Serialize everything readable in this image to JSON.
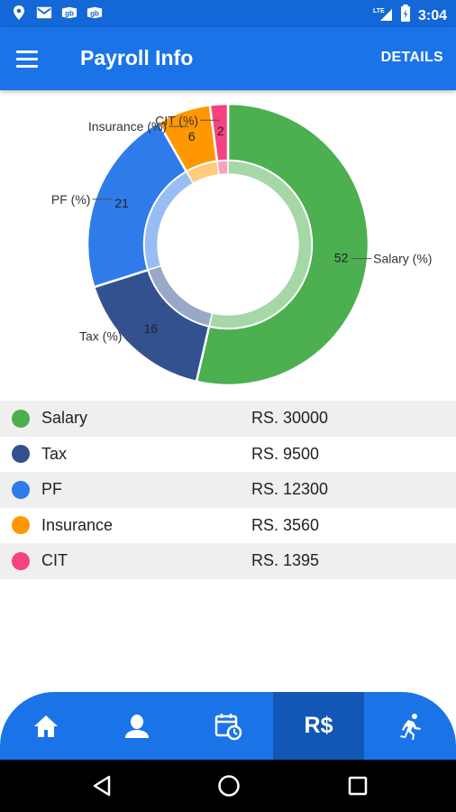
{
  "status_bar": {
    "time": "3:04",
    "network": "LTE",
    "left_icons": [
      "location-icon",
      "mail-icon",
      "app-notification-icon",
      "app-notification-icon"
    ]
  },
  "app_bar": {
    "title": "Payroll Info",
    "action_label": "DETAILS"
  },
  "chart_data": {
    "type": "pie",
    "style": "donut",
    "series": [
      {
        "name": "Salary (%)",
        "value": 52,
        "color": "#4caf50"
      },
      {
        "name": "Tax (%)",
        "value": 16,
        "color": "#34518f"
      },
      {
        "name": "PF (%)",
        "value": 21,
        "color": "#2f7bea"
      },
      {
        "name": "Insurance (%)",
        "value": 6,
        "color": "#ff9800"
      },
      {
        "name": "CIT (%)",
        "value": 2,
        "color": "#f44283"
      }
    ]
  },
  "legend": {
    "items": [
      {
        "label": "Salary",
        "amount": "RS. 30000",
        "color": "#4caf50"
      },
      {
        "label": "Tax",
        "amount": "RS. 9500",
        "color": "#34518f"
      },
      {
        "label": "PF",
        "amount": "RS. 12300",
        "color": "#2f7bea"
      },
      {
        "label": "Insurance",
        "amount": "RS. 3560",
        "color": "#ff9800"
      },
      {
        "label": "CIT",
        "amount": "RS. 1395",
        "color": "#f44283"
      }
    ]
  },
  "bottom_nav": {
    "items": [
      {
        "icon": "home-icon",
        "label": ""
      },
      {
        "icon": "person-icon",
        "label": ""
      },
      {
        "icon": "calendar-clock-icon",
        "label": ""
      },
      {
        "icon": "currency-icon",
        "label": "R$",
        "active": true
      },
      {
        "icon": "running-icon",
        "label": ""
      }
    ]
  },
  "colors": {
    "primary": "#1a74e8",
    "status_bar": "#1467d6",
    "active_nav": "#1257b6"
  }
}
